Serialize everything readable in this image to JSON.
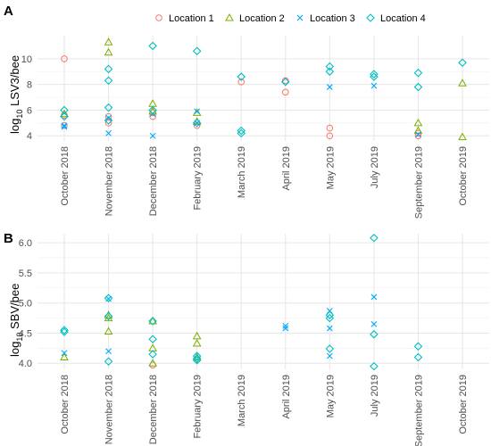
{
  "legend": {
    "items": [
      {
        "label": "Location 1",
        "color": "#F8766D",
        "shape": "circle"
      },
      {
        "label": "Location 2",
        "color": "#7CAE00",
        "shape": "triangle"
      },
      {
        "label": "Location 3",
        "color": "#00A9FF",
        "shape": "cross"
      },
      {
        "label": "Location 4",
        "color": "#00BFC4",
        "shape": "diamond"
      }
    ]
  },
  "chart_data": [
    {
      "panel": "A",
      "type": "scatter",
      "ylabel_sub": "10",
      "ylabel_prefix": "log",
      "ylabel_rest": " LSV3/bee",
      "categories": [
        "October 2018",
        "November 2018",
        "December 2018",
        "February 2019",
        "March 2019",
        "April 2019",
        "May 2019",
        "July 2019",
        "September 2019",
        "October 2019"
      ],
      "ylim": [
        3.6,
        11.8
      ],
      "yticks": [
        "4",
        "6",
        "8",
        "10"
      ],
      "ytick_values": [
        4,
        6,
        8,
        10
      ],
      "grid": true,
      "series": [
        {
          "name": "Location 1",
          "points": [
            [
              0,
              10.0
            ],
            [
              0,
              5.6
            ],
            [
              0,
              4.8
            ],
            [
              1,
              5.5
            ],
            [
              1,
              5.0
            ],
            [
              2,
              5.5
            ],
            [
              2,
              5.8
            ],
            [
              3,
              4.8
            ],
            [
              4,
              8.2
            ],
            [
              5,
              7.4
            ],
            [
              5,
              8.3
            ],
            [
              6,
              4.6
            ],
            [
              6,
              4.0
            ],
            [
              8,
              4.0
            ],
            [
              8,
              4.2
            ]
          ]
        },
        {
          "name": "Location 2",
          "points": [
            [
              0,
              5.7
            ],
            [
              1,
              11.3
            ],
            [
              1,
              10.5
            ],
            [
              2,
              6.5
            ],
            [
              2,
              5.9
            ],
            [
              3,
              5.8
            ],
            [
              3,
              5.1
            ],
            [
              8,
              5.0
            ],
            [
              8,
              4.4
            ],
            [
              9,
              8.1
            ],
            [
              9,
              3.9
            ]
          ]
        },
        {
          "name": "Location 3",
          "points": [
            [
              0,
              4.8
            ],
            [
              0,
              4.7
            ],
            [
              1,
              4.2
            ],
            [
              1,
              5.4
            ],
            [
              2,
              4.0
            ],
            [
              2,
              5.7
            ],
            [
              3,
              5.9
            ],
            [
              3,
              5.0
            ],
            [
              6,
              7.8
            ],
            [
              7,
              7.9
            ],
            [
              8,
              4.1
            ]
          ]
        },
        {
          "name": "Location 4",
          "points": [
            [
              0,
              6.0
            ],
            [
              0,
              5.5
            ],
            [
              1,
              9.2
            ],
            [
              1,
              8.3
            ],
            [
              1,
              6.2
            ],
            [
              1,
              5.2
            ],
            [
              2,
              11.0
            ],
            [
              2,
              6.0
            ],
            [
              3,
              10.6
            ],
            [
              3,
              5.0
            ],
            [
              4,
              8.6
            ],
            [
              4,
              4.4
            ],
            [
              4,
              4.2
            ],
            [
              5,
              8.2
            ],
            [
              6,
              9.4
            ],
            [
              6,
              9.0
            ],
            [
              7,
              8.8
            ],
            [
              7,
              8.6
            ],
            [
              8,
              8.9
            ],
            [
              8,
              7.8
            ],
            [
              9,
              9.7
            ]
          ]
        }
      ]
    },
    {
      "panel": "B",
      "type": "scatter",
      "ylabel_sub": "10",
      "ylabel_prefix": "log",
      "ylabel_rest": " SBV/bee",
      "categories": [
        "October 2018",
        "November 2018",
        "December 2018",
        "February 2019",
        "March 2019",
        "April 2019",
        "May 2019",
        "July 2019",
        "September 2019",
        "October 2019"
      ],
      "ylim": [
        3.9,
        6.15
      ],
      "yticks": [
        "4.0",
        "4.5",
        "5.0",
        "5.5",
        "6.0"
      ],
      "ytick_values": [
        4.0,
        4.5,
        5.0,
        5.5,
        6.0
      ],
      "grid": true,
      "series": [
        {
          "name": "Location 1",
          "points": [
            [
              2,
              3.97
            ],
            [
              3,
              4.06
            ]
          ]
        },
        {
          "name": "Location 2",
          "points": [
            [
              0,
              4.1
            ],
            [
              1,
              4.8
            ],
            [
              1,
              4.75
            ],
            [
              1,
              4.53
            ],
            [
              2,
              4.7
            ],
            [
              2,
              4.25
            ],
            [
              2,
              4.0
            ],
            [
              3,
              4.45
            ],
            [
              3,
              4.33
            ],
            [
              3,
              4.1
            ]
          ]
        },
        {
          "name": "Location 3",
          "points": [
            [
              0,
              4.17
            ],
            [
              1,
              4.2
            ],
            [
              1,
              5.07
            ],
            [
              5,
              4.62
            ],
            [
              5,
              4.58
            ],
            [
              6,
              4.87
            ],
            [
              6,
              4.58
            ],
            [
              6,
              4.12
            ],
            [
              7,
              5.1
            ],
            [
              7,
              4.65
            ]
          ]
        },
        {
          "name": "Location 4",
          "points": [
            [
              0,
              4.55
            ],
            [
              0,
              4.52
            ],
            [
              1,
              5.08
            ],
            [
              1,
              4.78
            ],
            [
              1,
              4.03
            ],
            [
              2,
              4.7
            ],
            [
              2,
              4.4
            ],
            [
              2,
              4.15
            ],
            [
              3,
              4.12
            ],
            [
              3,
              4.08
            ],
            [
              3,
              4.05
            ],
            [
              6,
              4.8
            ],
            [
              6,
              4.75
            ],
            [
              6,
              4.24
            ],
            [
              7,
              6.08
            ],
            [
              7,
              4.48
            ],
            [
              7,
              3.95
            ],
            [
              8,
              4.28
            ],
            [
              8,
              4.1
            ]
          ]
        }
      ]
    }
  ]
}
